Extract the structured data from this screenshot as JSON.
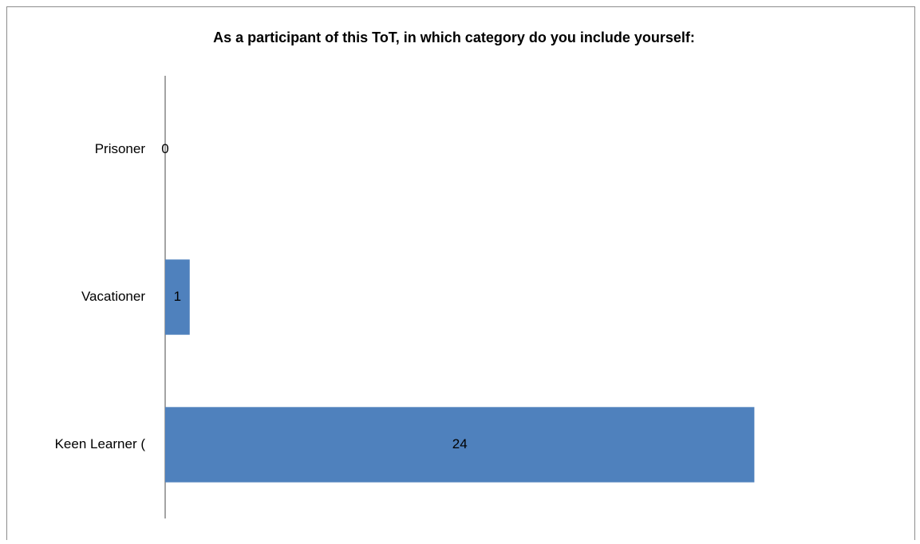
{
  "chart_data": {
    "type": "bar",
    "orientation": "horizontal",
    "title": "As a participant of this ToT, in which category do you include yourself:",
    "categories": [
      "Prisoner",
      "Vacationer",
      "Keen Learner ("
    ],
    "values": [
      0,
      1,
      24
    ],
    "color": "#4f81bd",
    "xlim": [
      0,
      30
    ],
    "grid": false
  }
}
